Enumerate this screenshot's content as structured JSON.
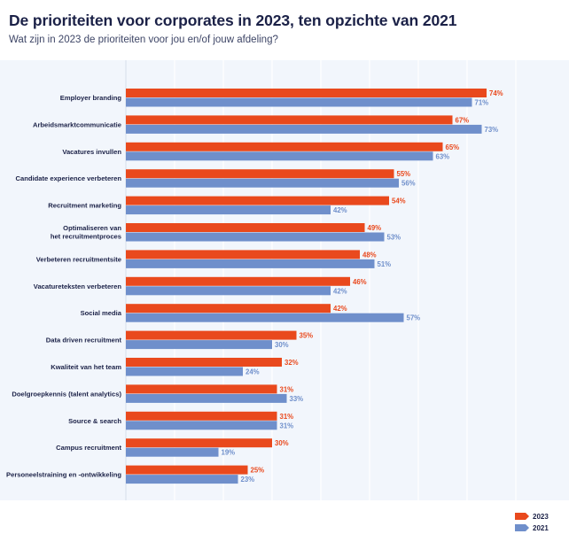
{
  "title": "De prioriteiten voor corporates in 2023, ten opzichte van 2021",
  "subtitle": "Wat zijn in 2023 de prioriteiten voor jou en/of jouw afdeling?",
  "colors": {
    "s2023": "#e9491d",
    "s2021": "#6f8fcb",
    "grid": "#ffffff",
    "panel": "#f2f6fc",
    "text": "#1b2147"
  },
  "chart_data": {
    "type": "bar",
    "orientation": "horizontal",
    "categories": [
      [
        "Employer branding"
      ],
      [
        "Arbeidsmarktcommunicatie"
      ],
      [
        "Vacatures invullen"
      ],
      [
        "Candidate experience verbeteren"
      ],
      [
        "Recruitment marketing"
      ],
      [
        "Optimaliseren van",
        "het recruitmentproces"
      ],
      [
        "Verbeteren recruitmentsite"
      ],
      [
        "Vacatureteksten verbeteren"
      ],
      [
        "Social media"
      ],
      [
        "Data driven recruitment"
      ],
      [
        "Kwaliteit van het team"
      ],
      [
        "Doelgroepkennis (talent analytics)"
      ],
      [
        "Source & search"
      ],
      [
        "Campus recruitment"
      ],
      [
        "Personeelstraining en -ontwikkeling"
      ]
    ],
    "series": [
      {
        "name": "2023",
        "values": [
          74,
          67,
          65,
          55,
          54,
          49,
          48,
          46,
          42,
          35,
          32,
          31,
          31,
          30,
          25
        ]
      },
      {
        "name": "2021",
        "values": [
          71,
          73,
          63,
          56,
          42,
          53,
          51,
          42,
          57,
          30,
          24,
          33,
          31,
          19,
          23
        ]
      }
    ],
    "value_suffix": "%",
    "xlim": [
      0,
      80
    ],
    "grid": true,
    "legend_position": "bottom-right"
  }
}
